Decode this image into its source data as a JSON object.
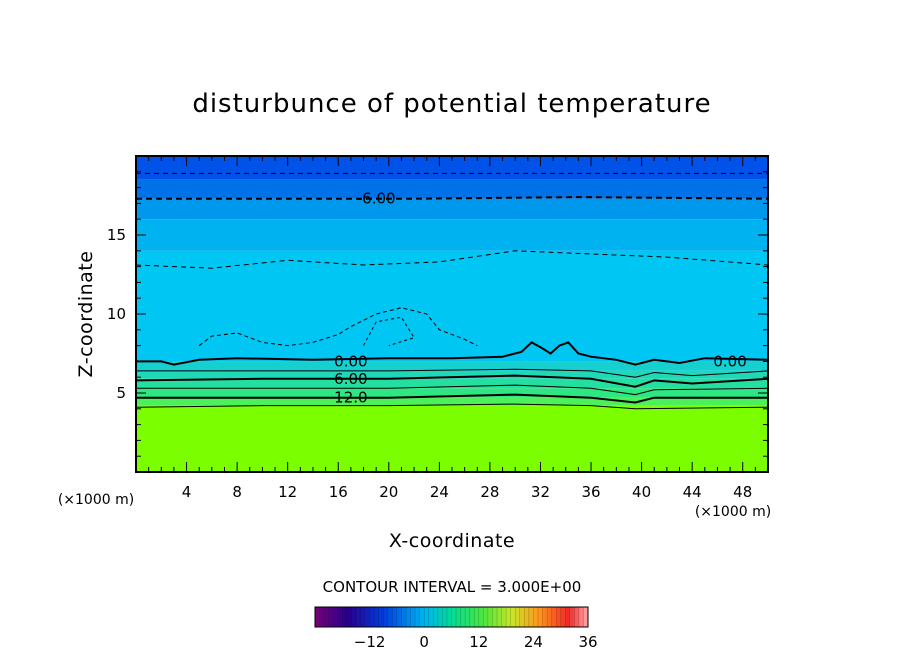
{
  "chart_data": {
    "type": "heatmap",
    "title": "disturbunce of potential temperature",
    "xlabel": "X-coordinate",
    "ylabel": "Z-coordinate",
    "x_unit": "(×1000 m)",
    "z_unit": "(×1000 m)",
    "xlim": [
      0,
      50
    ],
    "ylim": [
      0,
      20
    ],
    "x_ticks": [
      4,
      8,
      12,
      16,
      20,
      24,
      28,
      32,
      36,
      40,
      44,
      48
    ],
    "y_ticks": [
      5,
      10,
      15
    ],
    "contour_interval_label": "CONTOUR INTERVAL = 3.000E+00",
    "contour_labels": [
      {
        "text": "-6.00",
        "x": 19,
        "z": 17.3
      },
      {
        "text": "0.00",
        "x": 17,
        "z": 7.0
      },
      {
        "text": "6.00",
        "x": 17,
        "z": 5.9
      },
      {
        "text": "12.0",
        "x": 17,
        "z": 4.7
      },
      {
        "text": "0.00",
        "x": 47,
        "z": 7.0
      }
    ],
    "colorbar": {
      "ticks": [
        -12,
        0,
        12,
        24,
        36
      ],
      "range": [
        -24,
        36
      ]
    },
    "layers": [
      {
        "z_top": 4.2,
        "value": 15,
        "color": "#7bff00"
      },
      {
        "z_top": 4.7,
        "value": 13,
        "color": "#4cf05a"
      },
      {
        "z_top": 5.3,
        "value": 11,
        "color": "#2ee682"
      },
      {
        "z_top": 5.9,
        "value": 8,
        "color": "#24e0a0"
      },
      {
        "z_top": 6.4,
        "value": 5,
        "color": "#1ed8b8"
      },
      {
        "z_top": 7.0,
        "value": 2,
        "color": "#16d0d0"
      },
      {
        "z_top": 14.0,
        "value": -1,
        "color": "#00c6f4"
      },
      {
        "z_top": 16.0,
        "value": -3,
        "color": "#00b2f0"
      },
      {
        "z_top": 17.3,
        "value": -5,
        "color": "#0098ec"
      },
      {
        "z_top": 18.5,
        "value": -7,
        "color": "#0072e8"
      },
      {
        "z_top": 20.0,
        "value": -9,
        "color": "#0052e8"
      }
    ]
  }
}
